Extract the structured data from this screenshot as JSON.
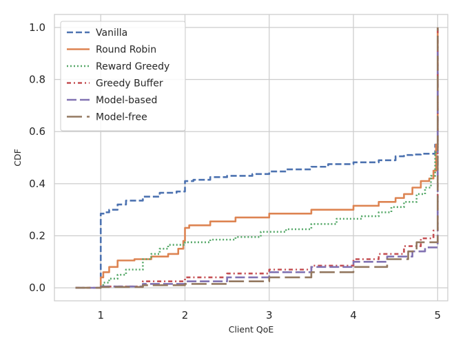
{
  "chart_data": {
    "type": "line",
    "title": "",
    "xlabel": "Client QoE",
    "ylabel": "CDF",
    "xlim": [
      0.45,
      5.12
    ],
    "ylim": [
      -0.05,
      1.05
    ],
    "xticks": [
      1,
      2,
      3,
      4,
      5
    ],
    "yticks": [
      0.0,
      0.2,
      0.4,
      0.6,
      0.8,
      1.0
    ],
    "xtick_labels": [
      "1",
      "2",
      "3",
      "4",
      "5"
    ],
    "ytick_labels": [
      "0.0",
      "0.2",
      "0.4",
      "0.6",
      "0.8",
      "1.0"
    ],
    "grid": true,
    "legend_position": "top-left",
    "series": [
      {
        "name": "Vanilla",
        "color": "#4c72b0",
        "dash": "dashed",
        "x": [
          1.0,
          1.0,
          1.05,
          1.1,
          1.2,
          1.3,
          1.5,
          1.7,
          1.9,
          2.0,
          2.0,
          2.1,
          2.3,
          2.5,
          2.8,
          3.0,
          3.2,
          3.5,
          3.7,
          4.0,
          4.3,
          4.5,
          4.6,
          4.7,
          4.8,
          4.95,
          4.97,
          5.0
        ],
        "y": [
          0.0,
          0.285,
          0.29,
          0.3,
          0.32,
          0.335,
          0.35,
          0.365,
          0.37,
          0.375,
          0.41,
          0.415,
          0.425,
          0.43,
          0.437,
          0.447,
          0.455,
          0.465,
          0.475,
          0.482,
          0.49,
          0.505,
          0.51,
          0.512,
          0.515,
          0.515,
          0.55,
          1.0
        ]
      },
      {
        "name": "Round Robin",
        "color": "#dd8452",
        "dash": "solid",
        "x": [
          1.0,
          1.0,
          1.03,
          1.1,
          1.2,
          1.4,
          1.6,
          1.8,
          1.92,
          1.98,
          2.0,
          2.05,
          2.3,
          2.6,
          3.0,
          3.5,
          4.0,
          4.3,
          4.5,
          4.6,
          4.7,
          4.8,
          4.9,
          4.95,
          4.98,
          5.0
        ],
        "y": [
          0.005,
          0.04,
          0.06,
          0.08,
          0.105,
          0.11,
          0.12,
          0.13,
          0.15,
          0.18,
          0.23,
          0.24,
          0.255,
          0.27,
          0.285,
          0.3,
          0.315,
          0.33,
          0.345,
          0.36,
          0.385,
          0.41,
          0.42,
          0.45,
          0.55,
          1.0
        ]
      },
      {
        "name": "Reward Greedy",
        "color": "#55a868",
        "dash": "dotted",
        "x": [
          1.0,
          1.03,
          1.1,
          1.2,
          1.3,
          1.5,
          1.6,
          1.7,
          1.8,
          2.0,
          2.3,
          2.6,
          2.9,
          3.2,
          3.5,
          3.8,
          4.1,
          4.3,
          4.45,
          4.6,
          4.75,
          4.85,
          4.92,
          4.97,
          5.0
        ],
        "y": [
          0.005,
          0.02,
          0.035,
          0.05,
          0.07,
          0.11,
          0.13,
          0.15,
          0.165,
          0.175,
          0.185,
          0.195,
          0.215,
          0.225,
          0.245,
          0.265,
          0.275,
          0.29,
          0.31,
          0.33,
          0.36,
          0.385,
          0.43,
          0.52,
          0.6
        ]
      },
      {
        "name": "Greedy Buffer",
        "color": "#c44e52",
        "dash": "dash-dot",
        "x": [
          0.7,
          1.0,
          1.5,
          2.0,
          2.5,
          3.0,
          3.5,
          4.0,
          4.3,
          4.6,
          4.8,
          4.95,
          5.0,
          5.0
        ],
        "y": [
          0.0,
          0.005,
          0.025,
          0.04,
          0.055,
          0.07,
          0.085,
          0.11,
          0.13,
          0.16,
          0.19,
          0.22,
          0.235,
          1.0
        ]
      },
      {
        "name": "Model-based",
        "color": "#8172b2",
        "dash": "long-dash",
        "x": [
          0.7,
          1.0,
          1.5,
          2.0,
          2.5,
          3.0,
          3.5,
          4.0,
          4.4,
          4.7,
          4.85,
          4.95,
          5.0,
          5.0
        ],
        "y": [
          0.0,
          0.005,
          0.015,
          0.025,
          0.04,
          0.06,
          0.08,
          0.1,
          0.12,
          0.14,
          0.155,
          0.155,
          0.16,
          0.92
        ]
      },
      {
        "name": "Model-free",
        "color": "#937860",
        "dash": "xlong-dash",
        "x": [
          0.7,
          1.0,
          1.5,
          2.0,
          2.5,
          3.0,
          3.5,
          4.0,
          4.4,
          4.65,
          4.75,
          4.95,
          5.0,
          5.0
        ],
        "y": [
          0.0,
          0.003,
          0.01,
          0.015,
          0.025,
          0.04,
          0.06,
          0.08,
          0.11,
          0.14,
          0.175,
          0.175,
          0.18,
          1.0
        ]
      }
    ]
  }
}
